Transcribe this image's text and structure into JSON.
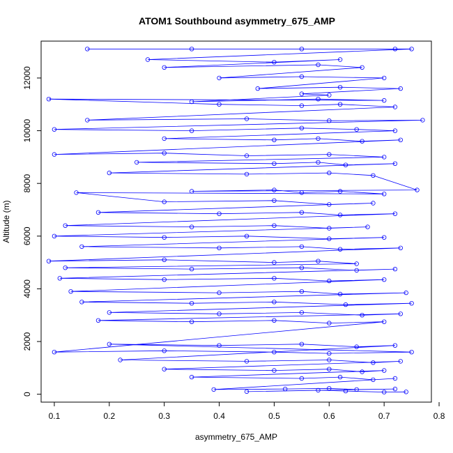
{
  "chart_data": {
    "type": "scatter",
    "title": "ATOM1 Southbound asymmetry_675_AMP",
    "xlabel": "asymmetry_675_AMP",
    "ylabel": "Altitude (m)",
    "xlim": [
      0.076,
      0.786
    ],
    "ylim": [
      -300,
      13400
    ],
    "x_ticks": [
      0.1,
      0.2,
      0.3,
      0.4,
      0.5,
      0.6,
      0.7,
      0.8
    ],
    "x_tick_labels": [
      "0.1",
      "0.2",
      "0.3",
      "0.4",
      "0.5",
      "0.6",
      "0.7",
      "0.8"
    ],
    "y_ticks": [
      0,
      2000,
      4000,
      6000,
      8000,
      10000,
      12000
    ],
    "y_tick_labels": [
      "0",
      "2000",
      "4000",
      "6000",
      "8000",
      "10000",
      "12000"
    ],
    "grid": false,
    "series": [
      {
        "color": "#0000ff",
        "marker": "open-circle",
        "connected": true,
        "x": [
          0.16,
          0.35,
          0.55,
          0.72,
          0.75,
          0.27,
          0.5,
          0.62,
          0.3,
          0.58,
          0.66,
          0.4,
          0.55,
          0.7,
          0.47,
          0.62,
          0.73,
          0.55,
          0.6,
          0.35,
          0.58,
          0.7,
          0.09,
          0.4,
          0.55,
          0.62,
          0.72,
          0.16,
          0.45,
          0.6,
          0.77,
          0.1,
          0.35,
          0.55,
          0.65,
          0.72,
          0.3,
          0.5,
          0.58,
          0.66,
          0.73,
          0.1,
          0.3,
          0.45,
          0.6,
          0.7,
          0.25,
          0.5,
          0.58,
          0.63,
          0.72,
          0.2,
          0.45,
          0.6,
          0.68,
          0.76,
          0.35,
          0.5,
          0.55,
          0.62,
          0.7,
          0.14,
          0.3,
          0.5,
          0.6,
          0.68,
          0.18,
          0.4,
          0.55,
          0.62,
          0.72,
          0.12,
          0.35,
          0.5,
          0.6,
          0.67,
          0.1,
          0.3,
          0.45,
          0.6,
          0.7,
          0.15,
          0.4,
          0.55,
          0.62,
          0.73,
          0.09,
          0.3,
          0.5,
          0.58,
          0.65,
          0.12,
          0.35,
          0.55,
          0.65,
          0.72,
          0.11,
          0.3,
          0.5,
          0.6,
          0.7,
          0.13,
          0.4,
          0.55,
          0.62,
          0.74,
          0.15,
          0.35,
          0.5,
          0.63,
          0.75,
          0.2,
          0.4,
          0.55,
          0.66,
          0.73,
          0.18,
          0.35,
          0.5,
          0.6,
          0.7,
          0.1,
          0.3,
          0.5,
          0.6,
          0.75,
          0.2,
          0.4,
          0.55,
          0.65,
          0.72,
          0.22,
          0.45,
          0.6,
          0.68,
          0.73,
          0.3,
          0.5,
          0.6,
          0.66,
          0.7,
          0.35,
          0.55,
          0.62,
          0.68,
          0.72,
          0.39,
          0.52,
          0.6,
          0.65,
          0.72,
          0.45,
          0.58,
          0.63,
          0.7,
          0.74
        ],
        "y": [
          13100,
          13100,
          13100,
          13100,
          13100,
          12700,
          12600,
          12700,
          12400,
          12500,
          12400,
          12000,
          12050,
          12000,
          11600,
          11650,
          11600,
          11400,
          11350,
          11100,
          11200,
          11150,
          11200,
          11000,
          10950,
          11000,
          10900,
          10400,
          10450,
          10380,
          10400,
          10050,
          10000,
          10100,
          10050,
          10000,
          9700,
          9650,
          9700,
          9600,
          9650,
          9100,
          9150,
          9050,
          9100,
          9000,
          8800,
          8750,
          8800,
          8700,
          8750,
          8400,
          8350,
          8400,
          8300,
          7750,
          7700,
          7750,
          7650,
          7700,
          7600,
          7650,
          7300,
          7350,
          7200,
          7250,
          6900,
          6850,
          6900,
          6800,
          6850,
          6400,
          6350,
          6400,
          6300,
          6350,
          6000,
          5950,
          6000,
          5900,
          5950,
          5600,
          5550,
          5600,
          5500,
          5550,
          5050,
          5100,
          5000,
          5050,
          4950,
          4800,
          4750,
          4800,
          4700,
          4750,
          4400,
          4350,
          4400,
          4300,
          4350,
          3900,
          3850,
          3900,
          3800,
          3850,
          3500,
          3450,
          3500,
          3400,
          3450,
          3100,
          3050,
          3100,
          3000,
          3050,
          2800,
          2750,
          2800,
          2700,
          2750,
          1600,
          1650,
          1600,
          1550,
          1600,
          1900,
          1850,
          1900,
          1800,
          1850,
          1300,
          1250,
          1300,
          1200,
          1250,
          950,
          900,
          950,
          850,
          900,
          650,
          600,
          650,
          550,
          600,
          180,
          200,
          220,
          180,
          200,
          100,
          150,
          120,
          80,
          90
        ]
      }
    ]
  }
}
